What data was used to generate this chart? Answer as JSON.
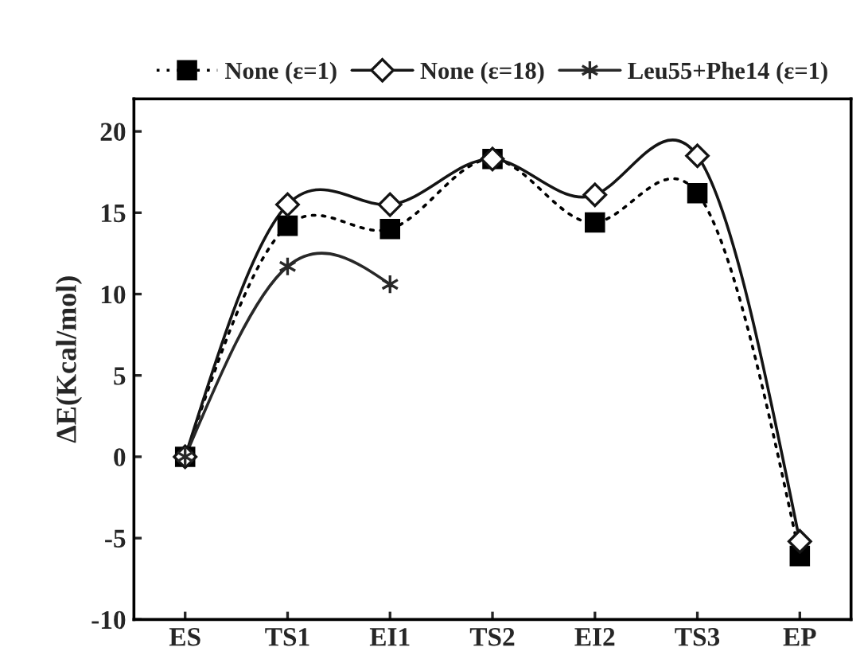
{
  "chart_data": {
    "type": "line",
    "ylabel": "ΔE(Kcal/mol)",
    "categories": [
      "ES",
      "TS1",
      "EI1",
      "TS2",
      "EI2",
      "TS3",
      "EP"
    ],
    "series": [
      {
        "name": "None (ε=1)",
        "color": "#000000",
        "marker": "square",
        "line_style": "dotted",
        "values": [
          0,
          14.2,
          14.0,
          18.3,
          14.4,
          16.2,
          -6.1
        ]
      },
      {
        "name": "None (ε=18)",
        "color": "#141414",
        "marker": "diamond",
        "line_style": "solid",
        "values": [
          0,
          15.5,
          15.5,
          18.3,
          16.1,
          18.5,
          -5.2
        ]
      },
      {
        "name": "Leu55+Phe14 (ε=1)",
        "color": "#282828",
        "marker": "cross",
        "line_style": "solid",
        "values": [
          0,
          11.7,
          10.6,
          null,
          null,
          null,
          null
        ]
      }
    ],
    "ylim": [
      -10,
      22
    ],
    "yticks": [
      -10,
      -5,
      0,
      5,
      10,
      15,
      20
    ],
    "grid": false,
    "legend": "top"
  }
}
